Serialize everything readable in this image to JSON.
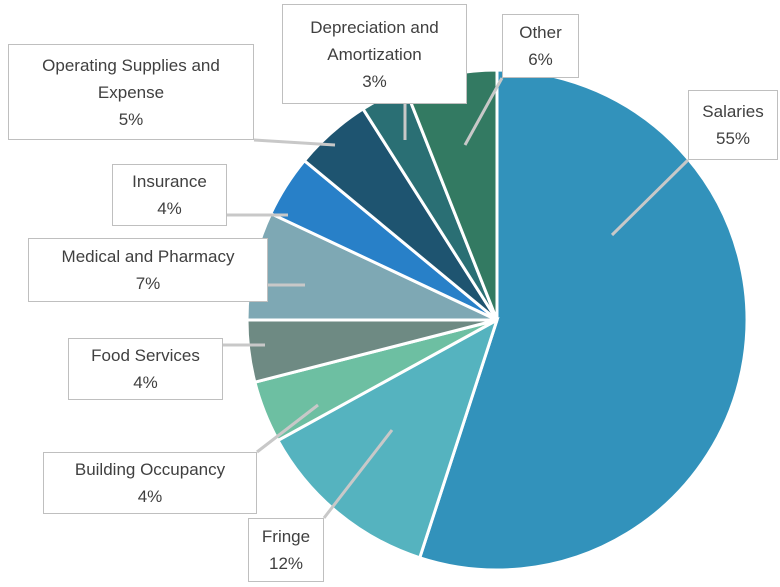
{
  "chart_data": {
    "type": "pie",
    "categories": [
      "Salaries",
      "Fringe",
      "Building Occupancy",
      "Food Services",
      "Medical and Pharmacy",
      "Insurance",
      "Operating Supplies and Expense",
      "Depreciation and Amortization",
      "Other"
    ],
    "values": [
      55,
      12,
      4,
      4,
      7,
      4,
      5,
      3,
      6
    ],
    "value_labels": [
      "55%",
      "12%",
      "4%",
      "4%",
      "7%",
      "4%",
      "5%",
      "3%",
      "6%"
    ],
    "colors": [
      "#3292bb",
      "#55b3bf",
      "#6dbfa2",
      "#6e8a83",
      "#7ea8b4",
      "#2880c8",
      "#1e5470",
      "#2a6f74",
      "#337a62"
    ]
  }
}
